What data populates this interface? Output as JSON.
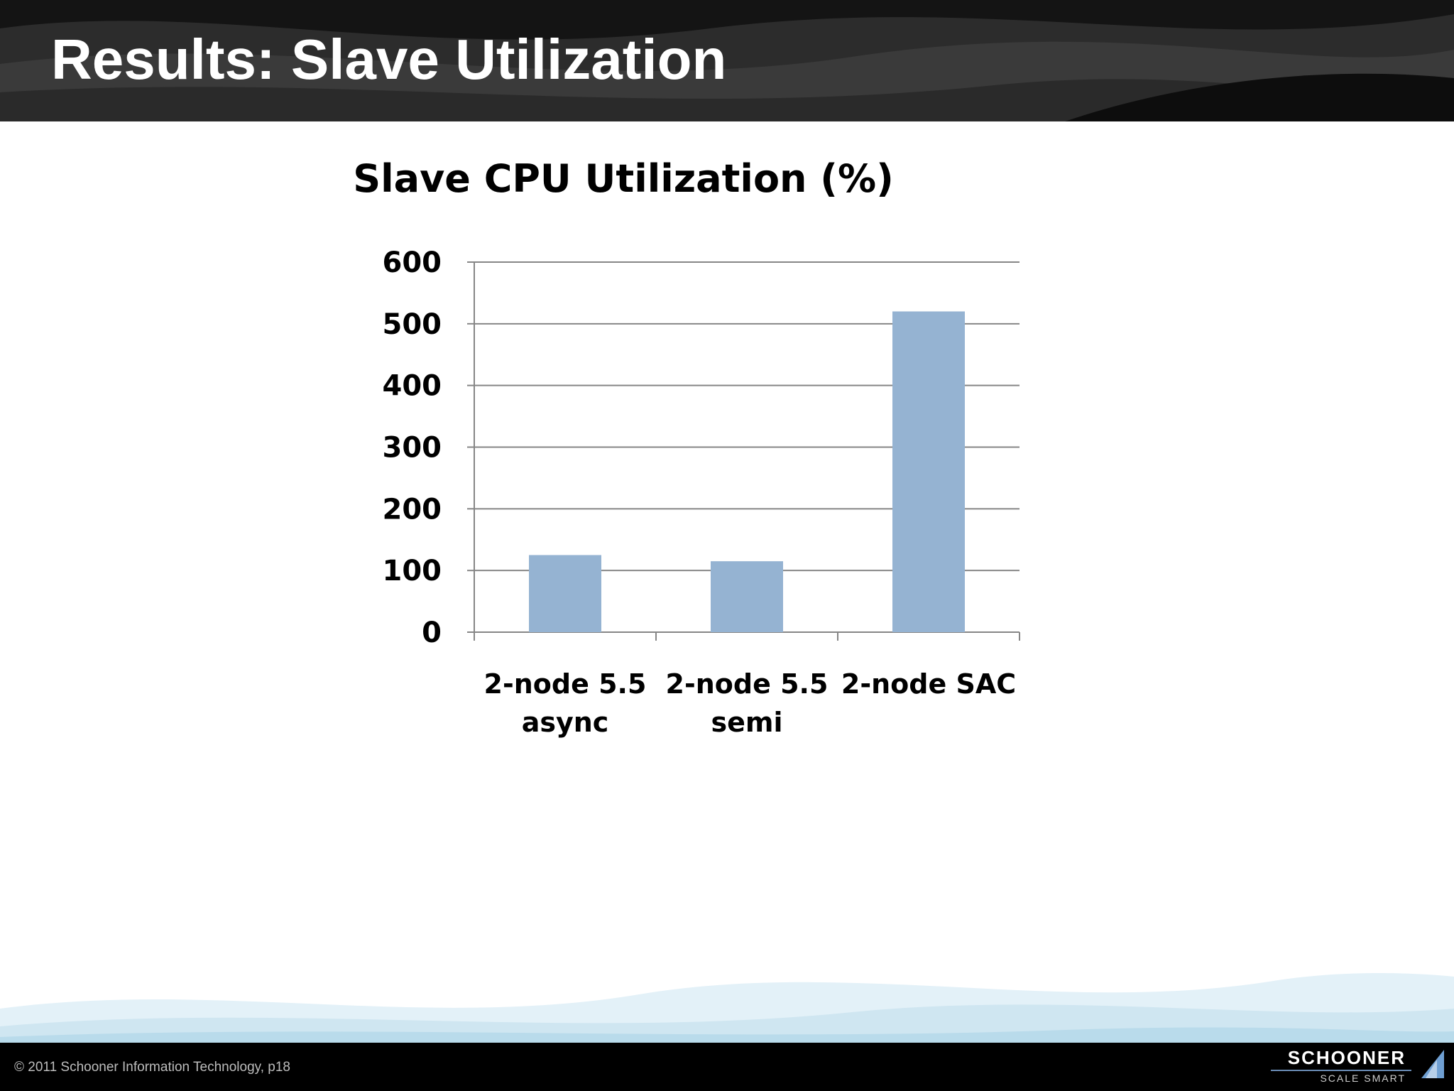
{
  "slide": {
    "title": "Results: Slave Utilization",
    "copyright": "© 2011  Schooner Information Technology, p18"
  },
  "logo": {
    "name": "SCHOONER",
    "tagline": "SCALE SMART",
    "icon": "sail-icon"
  },
  "colors": {
    "bar": "#95b3d2",
    "gridline": "#868686",
    "header": "#1a1a1a",
    "footer": "#000000"
  },
  "chart_data": {
    "type": "bar",
    "title": "Slave CPU Utilization (%)",
    "categories": [
      [
        "2-node 5.5",
        "async"
      ],
      [
        "2-node 5.5",
        "semi"
      ],
      [
        "2-node SAC"
      ]
    ],
    "values": [
      125,
      115,
      520
    ],
    "ylim": [
      0,
      600
    ],
    "yticks": [
      0,
      100,
      200,
      300,
      400,
      500,
      600
    ],
    "xlabel": "",
    "ylabel": "",
    "grid": true,
    "legend": "none"
  }
}
